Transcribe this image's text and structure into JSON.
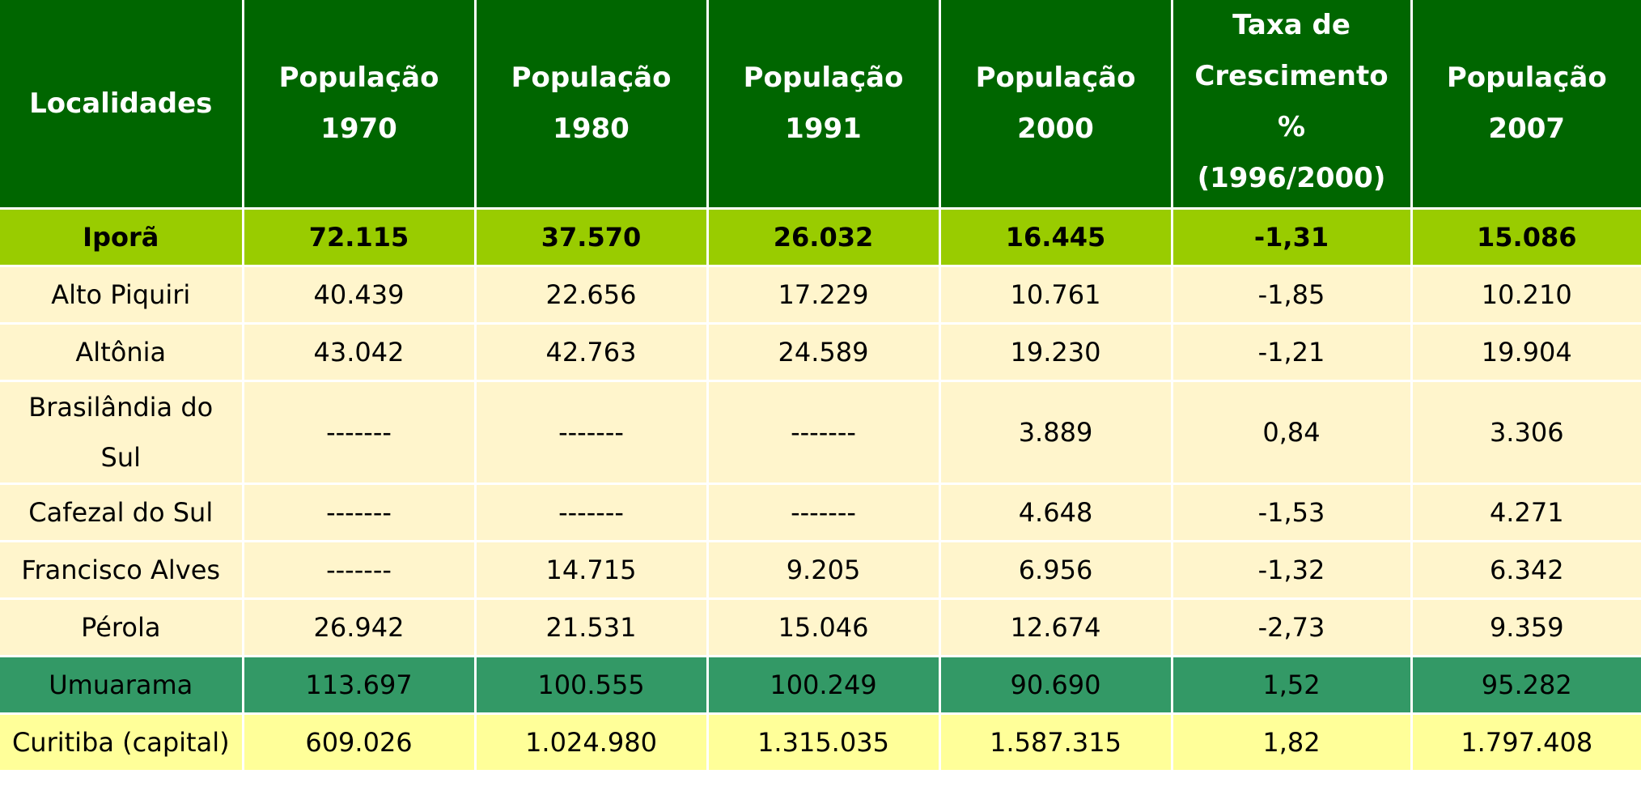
{
  "table": {
    "headers": [
      "Localidades",
      "População 1970",
      "População 1980",
      "População 1991",
      "População 2000",
      "Taxa de Crescimento % (1996/2000)",
      "População 2007"
    ],
    "header_lines": [
      [
        "Localidades"
      ],
      [
        "População",
        "1970"
      ],
      [
        "População",
        "1980"
      ],
      [
        "População",
        "1991"
      ],
      [
        "População",
        "2000"
      ],
      [
        "Taxa de",
        "Crescimento",
        "%",
        "(1996/2000)"
      ],
      [
        "População",
        "2007"
      ]
    ],
    "rows": [
      {
        "name": "Iporã",
        "values": [
          "72.115",
          "37.570",
          "26.032",
          "16.445",
          "-1,31",
          "15.086"
        ]
      },
      {
        "name": "Alto Piquiri",
        "values": [
          "40.439",
          "22.656",
          "17.229",
          "10.761",
          "-1,85",
          "10.210"
        ]
      },
      {
        "name": "Altônia",
        "values": [
          "43.042",
          "42.763",
          "24.589",
          "19.230",
          "-1,21",
          "19.904"
        ]
      },
      {
        "name": "Brasilândia do Sul",
        "name_lines": [
          "Brasilândia do",
          "Sul"
        ],
        "values": [
          "-------",
          "-------",
          "-------",
          "3.889",
          "0,84",
          "3.306"
        ]
      },
      {
        "name": "Cafezal do Sul",
        "values": [
          "-------",
          "-------",
          "-------",
          "4.648",
          "-1,53",
          "4.271"
        ]
      },
      {
        "name": "Francisco Alves",
        "values": [
          "-------",
          "14.715",
          "9.205",
          "6.956",
          "-1,32",
          "6.342"
        ]
      },
      {
        "name": "Pérola",
        "values": [
          "26.942",
          "21.531",
          "15.046",
          "12.674",
          "-2,73",
          "9.359"
        ]
      },
      {
        "name": "Umuarama",
        "values": [
          "113.697",
          "100.555",
          "100.249",
          "90.690",
          "1,52",
          "95.282"
        ]
      },
      {
        "name": "Curitiba (capital)",
        "values": [
          "609.026",
          "1.024.980",
          "1.315.035",
          "1.587.315",
          "1,82",
          "1.797.408"
        ]
      }
    ]
  },
  "colors": {
    "header_bg": "#006600",
    "highlight_row_bg": "#99cc00",
    "normal_row_bg": "#fff5cc",
    "umuarama_row_bg": "#339966",
    "capital_row_bg": "#ffff99",
    "grid_lines": "#ffffff"
  }
}
